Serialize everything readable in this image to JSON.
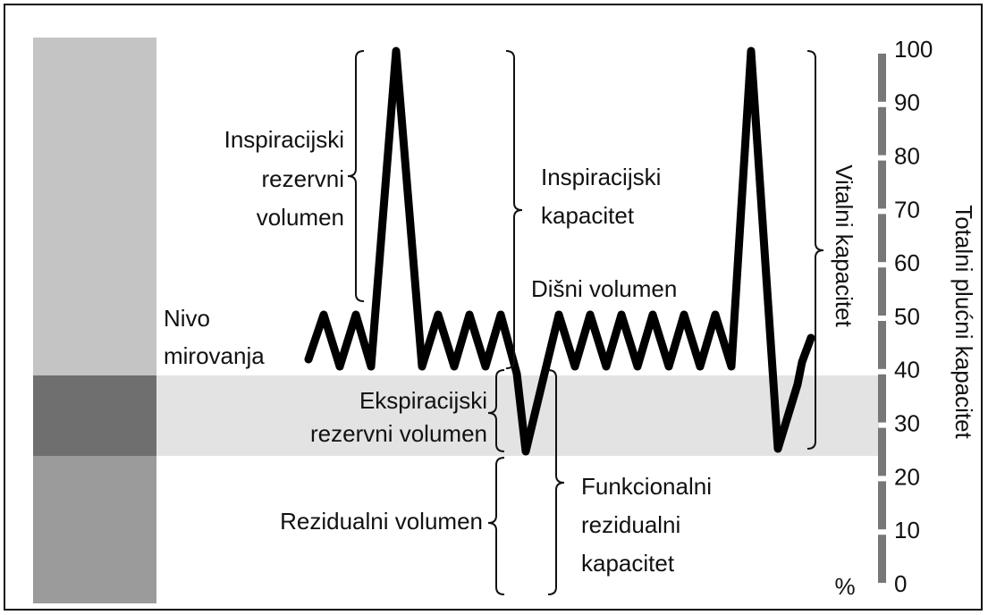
{
  "labels": {
    "irv": [
      "Inspiracijski",
      "rezervni",
      "volumen"
    ],
    "ic": [
      "Inspiracijski",
      "kapacitet"
    ],
    "tidal": "Dišni volumen",
    "rest": [
      "Nivo",
      "mirovanja"
    ],
    "erv": [
      "Ekspiracijski",
      "rezervni volumen"
    ],
    "rv": "Rezidualni volumen",
    "frc": [
      "Funkcionalni",
      "rezidualni",
      "kapacitet"
    ],
    "vc": "Vitalni kapacitet",
    "tlc": "Totalni plućni kapacitet",
    "unit": "%"
  },
  "axis": {
    "ticks": [
      "100",
      "90",
      "80",
      "70",
      "60",
      "50",
      "40",
      "30",
      "20",
      "10",
      "0"
    ]
  }
}
